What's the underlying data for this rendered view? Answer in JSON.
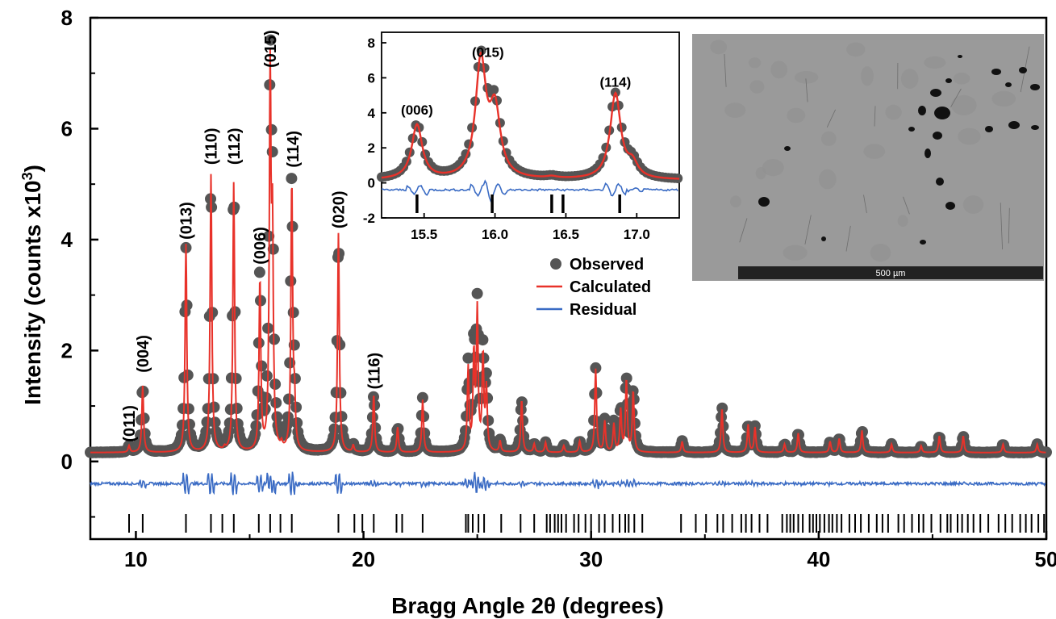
{
  "chart_data": [
    {
      "type": "scatter",
      "panel": "main",
      "xlabel": "Bragg Angle 2θ (degrees)",
      "ylabel_main": "Intensity (counts x10",
      "ylabel_sup": "3",
      "ylabel_end": ")",
      "xlim": [
        8,
        50
      ],
      "ylim": [
        -1.4,
        8
      ],
      "x_ticks": [
        10,
        20,
        30,
        40,
        50
      ],
      "y_ticks": [
        0,
        2,
        4,
        6,
        8
      ],
      "grid": false,
      "legend": {
        "placement": "center-top",
        "entries": [
          {
            "label": "Observed",
            "color": "#555555",
            "marker": "circle"
          },
          {
            "label": "Calculated",
            "color": "#e8322a",
            "marker": "line"
          },
          {
            "label": "Residual",
            "color": "#3a6bc4",
            "marker": "line"
          }
        ]
      },
      "series": [
        {
          "name": "Observed",
          "color": "#555555"
        },
        {
          "name": "Calculated",
          "color": "#e8322a"
        },
        {
          "name": "Residual",
          "color": "#3a6bc4",
          "offset": -0.4
        }
      ],
      "background": 0.16,
      "peaks": [
        {
          "x": 9.7,
          "height": 0.12
        },
        {
          "x": 10.3,
          "height": 1.2
        },
        {
          "x": 12.2,
          "height": 3.75
        },
        {
          "x": 13.3,
          "height": 5.0
        },
        {
          "x": 13.9,
          "height": 0.05
        },
        {
          "x": 14.3,
          "height": 4.85
        },
        {
          "x": 15.45,
          "height": 3.1
        },
        {
          "x": 15.9,
          "height": 6.6
        },
        {
          "x": 16.0,
          "height": 3.7
        },
        {
          "x": 16.4,
          "height": 0.1
        },
        {
          "x": 16.85,
          "height": 4.85
        },
        {
          "x": 16.97,
          "height": 0.8
        },
        {
          "x": 18.9,
          "height": 3.95
        },
        {
          "x": 19.55,
          "height": 0.12
        },
        {
          "x": 20.45,
          "height": 1.05
        },
        {
          "x": 21.5,
          "height": 0.45
        },
        {
          "x": 22.6,
          "height": 0.95
        },
        {
          "x": 24.6,
          "height": 1.5
        },
        {
          "x": 24.85,
          "height": 1.7
        },
        {
          "x": 25.0,
          "height": 2.5
        },
        {
          "x": 25.25,
          "height": 1.7
        },
        {
          "x": 25.4,
          "height": 1.1
        },
        {
          "x": 26.0,
          "height": 0.2
        },
        {
          "x": 26.95,
          "height": 0.95
        },
        {
          "x": 27.5,
          "height": 0.15
        },
        {
          "x": 28.0,
          "height": 0.18
        },
        {
          "x": 28.8,
          "height": 0.12
        },
        {
          "x": 29.5,
          "height": 0.2
        },
        {
          "x": 30.2,
          "height": 1.5
        },
        {
          "x": 30.6,
          "height": 0.55
        },
        {
          "x": 31.0,
          "height": 0.5
        },
        {
          "x": 31.3,
          "height": 0.75
        },
        {
          "x": 31.55,
          "height": 1.3
        },
        {
          "x": 31.85,
          "height": 1.1
        },
        {
          "x": 34.0,
          "height": 0.2
        },
        {
          "x": 35.75,
          "height": 0.8
        },
        {
          "x": 36.9,
          "height": 0.5
        },
        {
          "x": 37.2,
          "height": 0.45
        },
        {
          "x": 38.5,
          "height": 0.15
        },
        {
          "x": 39.1,
          "height": 0.35
        },
        {
          "x": 40.5,
          "height": 0.2
        },
        {
          "x": 40.9,
          "height": 0.25
        },
        {
          "x": 41.9,
          "height": 0.4
        },
        {
          "x": 43.2,
          "height": 0.15
        },
        {
          "x": 44.5,
          "height": 0.12
        },
        {
          "x": 45.3,
          "height": 0.3
        },
        {
          "x": 46.35,
          "height": 0.3
        },
        {
          "x": 48.1,
          "height": 0.15
        },
        {
          "x": 49.6,
          "height": 0.15
        }
      ],
      "reflection_ticks": [
        9.7,
        10.3,
        12.2,
        13.3,
        13.8,
        14.3,
        15.4,
        15.9,
        16.35,
        16.85,
        18.9,
        19.6,
        19.95,
        20.45,
        21.45,
        21.7,
        22.6,
        24.5,
        24.6,
        24.8,
        25.05,
        25.3,
        26.05,
        26.9,
        27.5,
        28.05,
        28.2,
        28.4,
        28.55,
        28.7,
        28.9,
        29.25,
        29.45,
        29.75,
        30.0,
        30.35,
        30.6,
        30.95,
        31.25,
        31.5,
        31.65,
        31.9,
        32.25,
        33.95,
        34.6,
        35.05,
        35.55,
        35.8,
        36.2,
        36.6,
        36.8,
        37.05,
        37.4,
        37.75,
        38.4,
        38.6,
        38.75,
        38.9,
        39.1,
        39.3,
        39.6,
        39.75,
        39.9,
        40.05,
        40.25,
        40.45,
        40.6,
        40.8,
        41.0,
        41.35,
        41.6,
        41.85,
        42.2,
        42.55,
        42.8,
        43.05,
        43.5,
        43.75,
        44.1,
        44.4,
        44.6,
        44.95,
        45.35,
        45.65,
        45.8,
        46.1,
        46.3,
        46.55,
        46.8,
        47.1,
        47.45,
        47.9,
        48.2,
        48.5,
        48.85,
        49.1,
        49.35,
        49.65,
        49.9
      ],
      "peak_labels": [
        {
          "text": "(011)",
          "x": 9.7,
          "y": 0.35
        },
        {
          "text": "(004)",
          "x": 10.3,
          "y": 1.6
        },
        {
          "text": "(013)",
          "x": 12.2,
          "y": 4.0
        },
        {
          "text": "(110)",
          "x": 13.3,
          "y": 5.35
        },
        {
          "text": "(112)",
          "x": 14.3,
          "y": 5.35
        },
        {
          "text": "(006)",
          "x": 15.45,
          "y": 3.55
        },
        {
          "text": "(015)",
          "x": 15.9,
          "y": 7.1
        },
        {
          "text": "(114)",
          "x": 16.9,
          "y": 5.3
        },
        {
          "text": "(020)",
          "x": 18.9,
          "y": 4.2
        },
        {
          "text": "(116)",
          "x": 20.45,
          "y": 1.3
        }
      ]
    },
    {
      "type": "scatter",
      "panel": "inset",
      "xlim": [
        15.2,
        17.3
      ],
      "ylim": [
        -2,
        8.6
      ],
      "x_ticks": [
        15.5,
        16.0,
        16.5,
        17.0
      ],
      "x_tick_labels": [
        "15.5",
        "16.0",
        "16.5",
        "17.0"
      ],
      "y_ticks": [
        -2,
        0,
        2,
        4,
        6,
        8
      ],
      "residual_offset": -0.4,
      "reflection_ticks": [
        15.45,
        15.98,
        16.4,
        16.48,
        16.88
      ],
      "peak_labels": [
        {
          "text": "(006)",
          "x": 15.45,
          "y": 3.9
        },
        {
          "text": "(015)",
          "x": 15.95,
          "y": 7.2
        },
        {
          "text": "(114)",
          "x": 16.85,
          "y": 5.5
        }
      ]
    }
  ],
  "micrograph": {
    "scale_bar_label": "500 µm",
    "background_color": "#9a9a9a"
  }
}
